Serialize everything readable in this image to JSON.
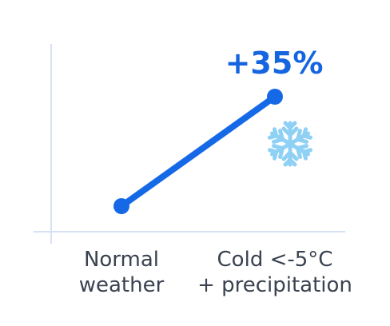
{
  "chart_data": {
    "type": "line",
    "categories": [
      "Normal weather",
      "Cold <-5°C + precipitation"
    ],
    "tick_labels": [
      [
        "Normal",
        "weather"
      ],
      [
        "Cold <-5°C",
        "+ precipitation"
      ]
    ],
    "series": [
      {
        "values": [
          0,
          35
        ]
      }
    ],
    "annotation": "+35%",
    "icon": "snowflake-icon",
    "grid": false,
    "colors": {
      "line": "#1669e6",
      "annotation": "#1565e0",
      "snowflake": "#8fd0f5",
      "axis": "#d6e2f2",
      "text": "#3a4250"
    }
  }
}
